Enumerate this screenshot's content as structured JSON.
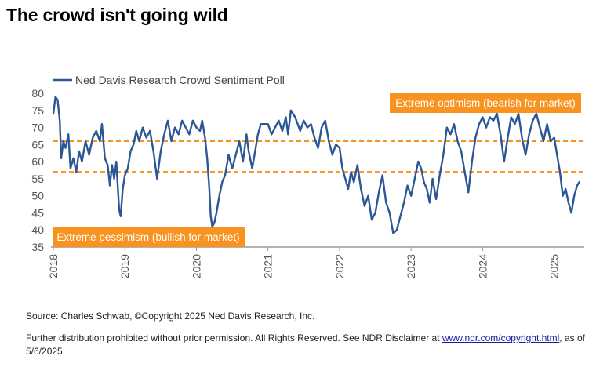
{
  "title": "The crowd isn't going wild",
  "chart_data": {
    "type": "line",
    "title": "The crowd isn't going wild",
    "xlabel": "",
    "ylabel": "",
    "ylim": [
      35,
      80
    ],
    "yticks": [
      35,
      40,
      45,
      50,
      55,
      60,
      65,
      70,
      75,
      80
    ],
    "xlim": [
      2018.0,
      2025.42
    ],
    "xticks": [
      "2018",
      "2019",
      "2020",
      "2021",
      "2022",
      "2023",
      "2024",
      "2025"
    ],
    "grid": false,
    "legend": {
      "label": "Ned Davis Research Crowd Sentiment Poll",
      "position": "top-left"
    },
    "reference_lines": [
      {
        "value": 66,
        "label": "Extreme optimism (bearish for market)",
        "color": "#F7931E"
      },
      {
        "value": 57,
        "label": "Extreme pessimism (bullish for market)",
        "color": "#F7931E"
      }
    ],
    "series": [
      {
        "name": "Ned Davis Research Crowd Sentiment Poll",
        "color": "#2B5797",
        "points": [
          [
            2018.0,
            74
          ],
          [
            2018.03,
            79
          ],
          [
            2018.06,
            78
          ],
          [
            2018.09,
            72
          ],
          [
            2018.11,
            61
          ],
          [
            2018.14,
            66
          ],
          [
            2018.17,
            64
          ],
          [
            2018.21,
            68
          ],
          [
            2018.24,
            58
          ],
          [
            2018.28,
            61
          ],
          [
            2018.32,
            57
          ],
          [
            2018.36,
            63
          ],
          [
            2018.4,
            60
          ],
          [
            2018.45,
            66
          ],
          [
            2018.5,
            62
          ],
          [
            2018.55,
            67
          ],
          [
            2018.6,
            69
          ],
          [
            2018.65,
            66
          ],
          [
            2018.68,
            71
          ],
          [
            2018.72,
            61
          ],
          [
            2018.76,
            59
          ],
          [
            2018.79,
            53
          ],
          [
            2018.82,
            59
          ],
          [
            2018.85,
            55
          ],
          [
            2018.88,
            60
          ],
          [
            2018.92,
            46
          ],
          [
            2018.94,
            44
          ],
          [
            2018.97,
            52
          ],
          [
            2019.0,
            56
          ],
          [
            2019.04,
            58
          ],
          [
            2019.08,
            63
          ],
          [
            2019.12,
            65
          ],
          [
            2019.16,
            69
          ],
          [
            2019.2,
            66
          ],
          [
            2019.25,
            70
          ],
          [
            2019.3,
            67
          ],
          [
            2019.35,
            69
          ],
          [
            2019.4,
            63
          ],
          [
            2019.45,
            55
          ],
          [
            2019.5,
            63
          ],
          [
            2019.55,
            68
          ],
          [
            2019.6,
            72
          ],
          [
            2019.65,
            66
          ],
          [
            2019.7,
            70
          ],
          [
            2019.75,
            68
          ],
          [
            2019.8,
            72
          ],
          [
            2019.85,
            70
          ],
          [
            2019.9,
            68
          ],
          [
            2019.95,
            72
          ],
          [
            2020.0,
            70
          ],
          [
            2020.05,
            69
          ],
          [
            2020.08,
            72
          ],
          [
            2020.12,
            67
          ],
          [
            2020.15,
            61
          ],
          [
            2020.18,
            52
          ],
          [
            2020.2,
            44
          ],
          [
            2020.22,
            41
          ],
          [
            2020.25,
            42
          ],
          [
            2020.28,
            45
          ],
          [
            2020.32,
            50
          ],
          [
            2020.36,
            54
          ],
          [
            2020.4,
            56
          ],
          [
            2020.45,
            62
          ],
          [
            2020.5,
            58
          ],
          [
            2020.55,
            62
          ],
          [
            2020.6,
            66
          ],
          [
            2020.65,
            60
          ],
          [
            2020.7,
            68
          ],
          [
            2020.73,
            63
          ],
          [
            2020.78,
            58
          ],
          [
            2020.82,
            63
          ],
          [
            2020.86,
            68
          ],
          [
            2020.9,
            71
          ],
          [
            2021.0,
            71
          ],
          [
            2021.05,
            68
          ],
          [
            2021.1,
            70
          ],
          [
            2021.15,
            72
          ],
          [
            2021.2,
            69
          ],
          [
            2021.25,
            73
          ],
          [
            2021.28,
            68
          ],
          [
            2021.32,
            75
          ],
          [
            2021.38,
            73
          ],
          [
            2021.45,
            69
          ],
          [
            2021.5,
            72
          ],
          [
            2021.55,
            70
          ],
          [
            2021.6,
            71
          ],
          [
            2021.65,
            67
          ],
          [
            2021.7,
            64
          ],
          [
            2021.75,
            70
          ],
          [
            2021.8,
            72
          ],
          [
            2021.85,
            66
          ],
          [
            2021.9,
            62
          ],
          [
            2021.95,
            65
          ],
          [
            2022.0,
            64
          ],
          [
            2022.04,
            58
          ],
          [
            2022.08,
            55
          ],
          [
            2022.12,
            52
          ],
          [
            2022.16,
            57
          ],
          [
            2022.2,
            54
          ],
          [
            2022.25,
            59
          ],
          [
            2022.3,
            52
          ],
          [
            2022.35,
            47
          ],
          [
            2022.4,
            50
          ],
          [
            2022.45,
            43
          ],
          [
            2022.5,
            45
          ],
          [
            2022.55,
            51
          ],
          [
            2022.6,
            56
          ],
          [
            2022.65,
            48
          ],
          [
            2022.7,
            45
          ],
          [
            2022.75,
            39
          ],
          [
            2022.8,
            40
          ],
          [
            2022.85,
            44
          ],
          [
            2022.9,
            48
          ],
          [
            2022.95,
            53
          ],
          [
            2023.0,
            50
          ],
          [
            2023.05,
            55
          ],
          [
            2023.1,
            60
          ],
          [
            2023.14,
            58
          ],
          [
            2023.18,
            54
          ],
          [
            2023.22,
            52
          ],
          [
            2023.26,
            48
          ],
          [
            2023.3,
            55
          ],
          [
            2023.35,
            49
          ],
          [
            2023.4,
            56
          ],
          [
            2023.45,
            62
          ],
          [
            2023.5,
            70
          ],
          [
            2023.55,
            68
          ],
          [
            2023.6,
            71
          ],
          [
            2023.65,
            66
          ],
          [
            2023.7,
            63
          ],
          [
            2023.75,
            57
          ],
          [
            2023.8,
            51
          ],
          [
            2023.85,
            60
          ],
          [
            2023.9,
            67
          ],
          [
            2023.95,
            71
          ],
          [
            2024.0,
            73
          ],
          [
            2024.05,
            70
          ],
          [
            2024.1,
            73
          ],
          [
            2024.15,
            72
          ],
          [
            2024.2,
            74
          ],
          [
            2024.25,
            68
          ],
          [
            2024.3,
            60
          ],
          [
            2024.35,
            67
          ],
          [
            2024.4,
            73
          ],
          [
            2024.45,
            71
          ],
          [
            2024.5,
            74
          ],
          [
            2024.55,
            67
          ],
          [
            2024.6,
            62
          ],
          [
            2024.65,
            68
          ],
          [
            2024.7,
            72
          ],
          [
            2024.75,
            74
          ],
          [
            2024.8,
            70
          ],
          [
            2024.85,
            66
          ],
          [
            2024.9,
            71
          ],
          [
            2024.95,
            66
          ],
          [
            2025.0,
            67
          ],
          [
            2025.04,
            62
          ],
          [
            2025.08,
            57
          ],
          [
            2025.12,
            50
          ],
          [
            2025.16,
            52
          ],
          [
            2025.2,
            48
          ],
          [
            2025.24,
            45
          ],
          [
            2025.28,
            50
          ],
          [
            2025.32,
            53
          ],
          [
            2025.35,
            54
          ]
        ]
      }
    ]
  },
  "source": "Source: Charles Schwab, ©Copyright 2025 Ned Davis Research, Inc.",
  "disclaimer": {
    "prefix": "Further distribution prohibited without prior permission. All Rights Reserved. See NDR Disclaimer at ",
    "link_text": "www.ndr.com/copyright.html",
    "suffix": ", as of 5/6/2025."
  }
}
